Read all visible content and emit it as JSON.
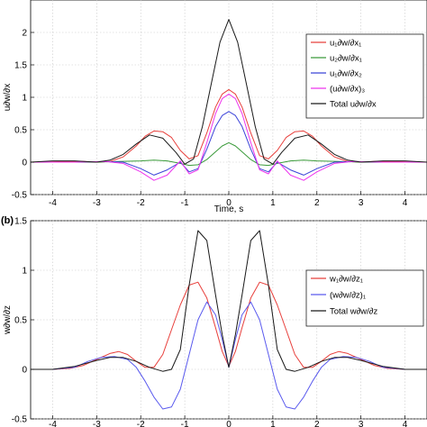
{
  "chart_data": [
    {
      "type": "line",
      "panel_label": "",
      "xlabel": "Time, s",
      "ylabel": "u∂w/∂x",
      "xlim": [
        -4.5,
        4.5
      ],
      "ylim": [
        -0.5,
        2.5
      ],
      "xticks": [
        -4,
        -3,
        -2,
        -1,
        0,
        1,
        2,
        3,
        4
      ],
      "yticks": [
        -0.5,
        0,
        0.5,
        1,
        1.5,
        2
      ],
      "grid": true,
      "legend_position": "top-right",
      "series": [
        {
          "name": "u₁∂w/∂x₁",
          "color": "#e8403c",
          "x": [
            -4.5,
            -4,
            -3.6,
            -3.3,
            -3,
            -2.7,
            -2.4,
            -2.1,
            -1.9,
            -1.7,
            -1.5,
            -1.3,
            -1.1,
            -0.9,
            -0.7,
            -0.5,
            -0.3,
            -0.15,
            0,
            0.15,
            0.3,
            0.5,
            0.7,
            0.9,
            1.1,
            1.3,
            1.5,
            1.7,
            1.9,
            2.1,
            2.4,
            2.7,
            3,
            3.3,
            3.6,
            4,
            4.5
          ],
          "y": [
            0,
            0.005,
            0.01,
            0.01,
            0,
            0.01,
            0.08,
            0.25,
            0.4,
            0.48,
            0.47,
            0.38,
            0.18,
            0.05,
            0.1,
            0.45,
            0.85,
            1.05,
            1.12,
            1.05,
            0.85,
            0.45,
            0.1,
            0.05,
            0.18,
            0.38,
            0.47,
            0.48,
            0.4,
            0.25,
            0.08,
            0.01,
            0,
            0.01,
            0.01,
            0.005,
            0
          ]
        },
        {
          "name": "u₂∂w/∂x₁",
          "color": "#3a9a3a",
          "x": [
            -4.5,
            -3,
            -2.5,
            -2,
            -1.7,
            -1.4,
            -1.1,
            -0.9,
            -0.7,
            -0.5,
            -0.3,
            -0.15,
            0,
            0.15,
            0.3,
            0.5,
            0.7,
            0.9,
            1.1,
            1.4,
            1.7,
            2,
            2.5,
            3,
            4.5
          ],
          "y": [
            0,
            0,
            0.01,
            0.02,
            0.03,
            0.02,
            -0.02,
            -0.05,
            -0.04,
            0.04,
            0.16,
            0.25,
            0.3,
            0.25,
            0.16,
            0.04,
            -0.04,
            -0.05,
            -0.02,
            0.02,
            0.03,
            0.02,
            0.01,
            0,
            0
          ]
        },
        {
          "name": "u₁∂w/∂x₂",
          "color": "#3b43d8",
          "x": [
            -4.5,
            -3.5,
            -2.8,
            -2.4,
            -2,
            -1.7,
            -1.4,
            -1.1,
            -0.9,
            -0.7,
            -0.5,
            -0.3,
            -0.15,
            0,
            0.15,
            0.3,
            0.5,
            0.7,
            0.9,
            1.1,
            1.4,
            1.7,
            2,
            2.4,
            2.8,
            3.5,
            4.5
          ],
          "y": [
            0,
            0,
            0.01,
            0,
            -0.1,
            -0.2,
            -0.12,
            0,
            -0.15,
            -0.1,
            0.2,
            0.55,
            0.72,
            0.78,
            0.72,
            0.55,
            0.2,
            -0.1,
            -0.15,
            0,
            -0.12,
            -0.2,
            -0.1,
            0,
            0.01,
            0,
            0
          ]
        },
        {
          "name": "(u∂w/∂x)₃",
          "color": "#ee34ee",
          "x": [
            -4.5,
            -3.5,
            -2.8,
            -2.4,
            -2,
            -1.7,
            -1.4,
            -1.1,
            -0.9,
            -0.7,
            -0.5,
            -0.3,
            -0.15,
            0,
            0.15,
            0.3,
            0.5,
            0.7,
            0.9,
            1.1,
            1.4,
            1.7,
            2,
            2.4,
            2.8,
            3.5,
            4.5
          ],
          "y": [
            0,
            0,
            0.01,
            -0.02,
            -0.15,
            -0.28,
            -0.2,
            0.02,
            -0.18,
            -0.12,
            0.3,
            0.75,
            0.98,
            1.05,
            0.98,
            0.75,
            0.3,
            -0.12,
            -0.18,
            0.02,
            -0.2,
            -0.28,
            -0.15,
            -0.02,
            0.01,
            0,
            0
          ]
        },
        {
          "name": "Total u∂w/∂x",
          "color": "#1a1a1a",
          "x": [
            -4.5,
            -4,
            -3.5,
            -3,
            -2.7,
            -2.4,
            -2.1,
            -1.8,
            -1.5,
            -1.2,
            -1,
            -0.8,
            -0.6,
            -0.4,
            -0.2,
            0,
            0.2,
            0.4,
            0.6,
            0.8,
            1,
            1.2,
            1.5,
            1.8,
            2.1,
            2.4,
            2.7,
            3,
            3.5,
            4,
            4.5
          ],
          "y": [
            0,
            0.02,
            0.02,
            0,
            0.03,
            0.12,
            0.28,
            0.42,
            0.37,
            0.15,
            -0.03,
            0.05,
            0.55,
            1.2,
            1.85,
            2.2,
            1.85,
            1.2,
            0.55,
            0.05,
            -0.03,
            0.15,
            0.37,
            0.42,
            0.28,
            0.12,
            0.03,
            0,
            0.02,
            0.02,
            0
          ]
        }
      ]
    },
    {
      "type": "line",
      "panel_label": "(b)",
      "xlabel": "",
      "ylabel": "w∂w/∂z",
      "xlim": [
        -4.5,
        4.5
      ],
      "ylim": [
        -0.5,
        1.5
      ],
      "xticks": [
        -4,
        -3,
        -2,
        -1,
        0,
        1,
        2,
        3,
        4
      ],
      "yticks": [
        -0.5,
        0,
        0.5,
        1,
        1.5
      ],
      "grid": true,
      "legend_position": "right",
      "series": [
        {
          "name": "w₁∂w/∂z₁",
          "color": "#e8403c",
          "x": [
            -4.5,
            -4,
            -3.6,
            -3.3,
            -3,
            -2.7,
            -2.5,
            -2.3,
            -2.1,
            -1.9,
            -1.7,
            -1.5,
            -1.3,
            -1.1,
            -0.9,
            -0.7,
            -0.5,
            -0.3,
            -0.15,
            0,
            0.15,
            0.3,
            0.5,
            0.7,
            0.9,
            1.1,
            1.3,
            1.5,
            1.7,
            1.9,
            2.1,
            2.3,
            2.5,
            2.7,
            3,
            3.3,
            3.6,
            4,
            4.5
          ],
          "y": [
            0,
            0,
            0.01,
            0.04,
            0.1,
            0.16,
            0.18,
            0.15,
            0.08,
            0.02,
            0.02,
            0.15,
            0.4,
            0.65,
            0.85,
            0.88,
            0.72,
            0.42,
            0.18,
            0.03,
            0.18,
            0.42,
            0.72,
            0.88,
            0.85,
            0.65,
            0.4,
            0.15,
            0.02,
            0.02,
            0.08,
            0.15,
            0.18,
            0.16,
            0.1,
            0.04,
            0.01,
            0,
            0
          ]
        },
        {
          "name": "(w∂w/∂z)₁",
          "color": "#5a5aee",
          "x": [
            -4.5,
            -4,
            -3.5,
            -3.2,
            -2.9,
            -2.6,
            -2.3,
            -2.1,
            -1.9,
            -1.7,
            -1.5,
            -1.3,
            -1.1,
            -0.9,
            -0.7,
            -0.5,
            -0.3,
            -0.15,
            0,
            0.15,
            0.3,
            0.5,
            0.7,
            0.9,
            1.1,
            1.3,
            1.5,
            1.7,
            1.9,
            2.1,
            2.3,
            2.6,
            2.9,
            3.2,
            3.5,
            4,
            4.5
          ],
          "y": [
            0,
            0,
            0.02,
            0.08,
            0.12,
            0.13,
            0.1,
            0.02,
            -0.12,
            -0.28,
            -0.4,
            -0.38,
            -0.2,
            0.15,
            0.5,
            0.68,
            0.55,
            0.3,
            0.02,
            0.3,
            0.55,
            0.68,
            0.5,
            0.15,
            -0.2,
            -0.38,
            -0.4,
            -0.28,
            -0.12,
            0.02,
            0.1,
            0.13,
            0.12,
            0.08,
            0.02,
            0,
            0
          ]
        },
        {
          "name": "Total w∂w/∂z",
          "color": "#1a1a1a",
          "x": [
            -4.5,
            -4,
            -3.5,
            -3,
            -2.7,
            -2.4,
            -2.1,
            -1.8,
            -1.5,
            -1.3,
            -1.1,
            -0.9,
            -0.7,
            -0.5,
            -0.3,
            -0.15,
            0,
            0.15,
            0.3,
            0.5,
            0.7,
            0.9,
            1.1,
            1.3,
            1.5,
            1.8,
            2.1,
            2.4,
            2.7,
            3,
            3.5,
            4,
            4.5
          ],
          "y": [
            0,
            0,
            0.03,
            0.09,
            0.12,
            0.12,
            0.08,
            0.02,
            -0.02,
            0,
            0.2,
            0.85,
            1.4,
            1.3,
            0.75,
            0.35,
            0.02,
            0.35,
            0.75,
            1.3,
            1.4,
            0.85,
            0.2,
            0,
            -0.02,
            0.02,
            0.08,
            0.12,
            0.12,
            0.09,
            0.03,
            0,
            0
          ]
        }
      ]
    }
  ]
}
